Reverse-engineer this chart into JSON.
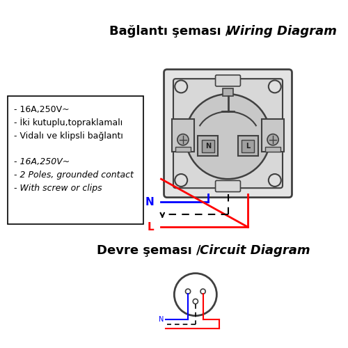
{
  "title_top_normal": "Bağlantı şeması / ",
  "title_top_italic": "Wiring Diagram",
  "title_bottom_normal": "Devre şeması / ",
  "title_bottom_italic": "Circuit Diagram",
  "spec_lines": [
    "- 16A,250V~",
    "- İki kutuplu,topraklamalı",
    "- Vidalı ve klipsli bağlantı",
    "",
    "- 16A,250V~",
    "- 2 Poles, grounded contact",
    "- With screw or clips"
  ],
  "bg_color": "#ffffff",
  "text_color": "#000000",
  "blue_color": "#0000ff",
  "red_color": "#ff0000",
  "dashed_color": "#000000",
  "box_outline_color": "#000000",
  "socket_dark_color": "#404040"
}
